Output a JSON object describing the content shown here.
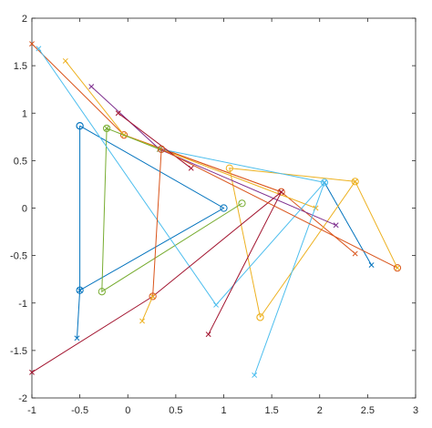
{
  "chart_data": {
    "type": "line",
    "title": "",
    "xlabel": "",
    "ylabel": "",
    "xlim": [
      -1,
      3
    ],
    "ylim": [
      -2,
      2
    ],
    "xticks": [
      -1,
      -0.5,
      0,
      0.5,
      1,
      1.5,
      2,
      2.5,
      3
    ],
    "yticks": [
      -2,
      -1.5,
      -1,
      -0.5,
      0,
      0.5,
      1,
      1.5,
      2
    ],
    "xtick_labels": [
      "-1",
      "-0.5",
      "0",
      "0.5",
      "1",
      "1.5",
      "2",
      "2.5",
      "3"
    ],
    "ytick_labels": [
      "-2",
      "-1.5",
      "-1",
      "-0.5",
      "0",
      "0.5",
      "1",
      "1.5",
      "2"
    ],
    "grid": false,
    "legend": "none",
    "series": [
      {
        "color": "#0072BD",
        "x": [
          -0.5,
          -0.5,
          1.0,
          -0.5
        ],
        "y": [
          0.866,
          -0.866,
          0.0,
          0.866
        ],
        "marker": "circle"
      },
      {
        "color": "#0072BD",
        "x": [
          2.05,
          2.54
        ],
        "y": [
          0.27,
          -0.6
        ],
        "marker": "x"
      },
      {
        "color": "#0072BD",
        "x": [
          -0.53,
          -0.5
        ],
        "y": [
          -1.37,
          -0.866
        ],
        "marker": "x"
      },
      {
        "color": "#D95319",
        "x": [
          -1.0,
          -0.04,
          1.6,
          2.37
        ],
        "y": [
          1.73,
          0.77,
          0.17,
          -0.48
        ],
        "marker": "x"
      },
      {
        "color": "#D95319",
        "x": [
          -0.04,
          1.6
        ],
        "y": [
          0.77,
          0.17
        ],
        "marker": "circle"
      },
      {
        "color": "#EDB120",
        "x": [
          -0.65,
          -0.04,
          1.96
        ],
        "y": [
          1.55,
          0.77,
          0.0
        ],
        "marker": "x"
      },
      {
        "color": "#EDB120",
        "x": [
          1.38,
          2.37,
          1.06,
          1.38
        ],
        "y": [
          -1.15,
          0.28,
          0.42,
          -1.15
        ],
        "marker": "circle"
      },
      {
        "color": "#7E2F8E",
        "x": [
          -0.38,
          0.33,
          2.17
        ],
        "y": [
          1.28,
          0.62,
          -0.18
        ],
        "marker": "x"
      },
      {
        "color": "#77AC30",
        "x": [
          -0.22,
          -0.27,
          1.19
        ],
        "y": [
          0.84,
          -0.88,
          0.05
        ],
        "marker": "circle"
      },
      {
        "color": "#77AC30",
        "x": [
          -0.22,
          0.33
        ],
        "y": [
          0.84,
          0.62
        ],
        "marker": "x"
      },
      {
        "color": "#4DBEEE",
        "x": [
          -0.93,
          0.92,
          2.05,
          1.32
        ],
        "y": [
          1.68,
          -1.02,
          0.27,
          -1.76
        ],
        "marker": "x"
      },
      {
        "color": "#4DBEEE",
        "x": [
          0.35,
          2.05
        ],
        "y": [
          0.62,
          0.27
        ],
        "marker": "circle"
      },
      {
        "color": "#A2142F",
        "x": [
          -1.0,
          0.26,
          1.6,
          0.84
        ],
        "y": [
          -1.73,
          -0.93,
          0.17,
          -1.33
        ],
        "marker": "x"
      },
      {
        "color": "#A2142F",
        "x": [
          -0.1,
          0.66
        ],
        "y": [
          1.0,
          0.42
        ],
        "marker": "x"
      },
      {
        "color": "#D95319",
        "x": [
          0.26,
          0.35,
          2.81
        ],
        "y": [
          -0.93,
          0.62,
          -0.63
        ],
        "marker": "circle"
      },
      {
        "color": "#EDB120",
        "x": [
          0.15,
          0.26
        ],
        "y": [
          -1.19,
          -0.93
        ],
        "marker": "x"
      },
      {
        "color": "#EDB120",
        "x": [
          2.37,
          2.81
        ],
        "y": [
          0.28,
          -0.63
        ],
        "marker": "x"
      }
    ]
  }
}
